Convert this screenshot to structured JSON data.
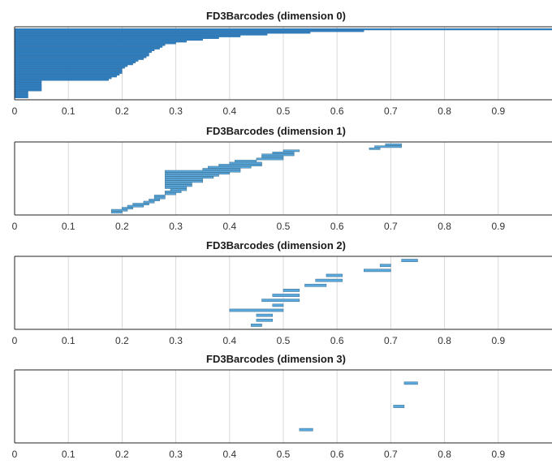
{
  "chart_data": [
    {
      "type": "barcode",
      "title": "FD3Barcodes (dimension 0)",
      "xlim": [
        0,
        1
      ],
      "xticks": [
        "0",
        "0.1",
        "0.2",
        "0.3",
        "0.4",
        "0.5",
        "0.6",
        "0.7",
        "0.8",
        "0.9"
      ],
      "grid": true,
      "bar_color": "#2f7fc1",
      "bars": [
        [
          0,
          1
        ],
        [
          0,
          0.65
        ],
        [
          0,
          0.55
        ],
        [
          0,
          0.47
        ],
        [
          0,
          0.42
        ],
        [
          0,
          0.38
        ],
        [
          0,
          0.35
        ],
        [
          0,
          0.32
        ],
        [
          0,
          0.3
        ],
        [
          0,
          0.28
        ],
        [
          0,
          0.275
        ],
        [
          0,
          0.27
        ],
        [
          0,
          0.26
        ],
        [
          0,
          0.255
        ],
        [
          0,
          0.25
        ],
        [
          0,
          0.25
        ],
        [
          0,
          0.245
        ],
        [
          0,
          0.24
        ],
        [
          0,
          0.23
        ],
        [
          0,
          0.225
        ],
        [
          0,
          0.22
        ],
        [
          0,
          0.21
        ],
        [
          0,
          0.205
        ],
        [
          0,
          0.2
        ],
        [
          0,
          0.2
        ],
        [
          0,
          0.2
        ],
        [
          0,
          0.195
        ],
        [
          0,
          0.19
        ],
        [
          0,
          0.18
        ],
        [
          0,
          0.175
        ],
        [
          0,
          0.05
        ],
        [
          0,
          0.05
        ],
        [
          0,
          0.05
        ],
        [
          0,
          0.05
        ],
        [
          0,
          0.05
        ],
        [
          0,
          0.05
        ],
        [
          0,
          0.025
        ],
        [
          0,
          0.025
        ],
        [
          0,
          0.025
        ],
        [
          0,
          0.025
        ]
      ]
    },
    {
      "type": "barcode",
      "title": "FD3Barcodes (dimension 1)",
      "xlim": [
        0,
        1
      ],
      "xticks": [
        "0",
        "0.1",
        "0.2",
        "0.3",
        "0.4",
        "0.5",
        "0.6",
        "0.7",
        "0.8",
        "0.9"
      ],
      "grid": true,
      "bar_color": "#5aa7dc",
      "bars": [
        [
          0.69,
          0.72
        ],
        [
          0.67,
          0.72
        ],
        [
          0.66,
          0.68
        ],
        [
          0.5,
          0.53
        ],
        [
          0.48,
          0.52
        ],
        [
          0.46,
          0.52
        ],
        [
          0.46,
          0.5
        ],
        [
          0.45,
          0.5
        ],
        [
          0.41,
          0.45
        ],
        [
          0.4,
          0.46
        ],
        [
          0.38,
          0.46
        ],
        [
          0.36,
          0.44
        ],
        [
          0.35,
          0.42
        ],
        [
          0.28,
          0.42
        ],
        [
          0.28,
          0.4
        ],
        [
          0.28,
          0.38
        ],
        [
          0.28,
          0.37
        ],
        [
          0.28,
          0.35
        ],
        [
          0.28,
          0.35
        ],
        [
          0.28,
          0.33
        ],
        [
          0.28,
          0.33
        ],
        [
          0.28,
          0.32
        ],
        [
          0.29,
          0.32
        ],
        [
          0.28,
          0.31
        ],
        [
          0.28,
          0.3
        ],
        [
          0.26,
          0.28
        ],
        [
          0.26,
          0.28
        ],
        [
          0.25,
          0.27
        ],
        [
          0.24,
          0.26
        ],
        [
          0.22,
          0.25
        ],
        [
          0.21,
          0.24
        ],
        [
          0.2,
          0.22
        ],
        [
          0.18,
          0.21
        ],
        [
          0.18,
          0.2
        ]
      ]
    },
    {
      "type": "barcode",
      "title": "FD3Barcodes (dimension 2)",
      "xlim": [
        0,
        1
      ],
      "xticks": [
        "0",
        "0.1",
        "0.2",
        "0.3",
        "0.4",
        "0.5",
        "0.6",
        "0.7",
        "0.8",
        "0.9"
      ],
      "grid": true,
      "bar_color": "#5aa7dc",
      "bars": [
        [
          0.72,
          0.75
        ],
        [
          0.68,
          0.7
        ],
        [
          0.65,
          0.7
        ],
        [
          0.58,
          0.61
        ],
        [
          0.56,
          0.61
        ],
        [
          0.54,
          0.58
        ],
        [
          0.5,
          0.53
        ],
        [
          0.48,
          0.53
        ],
        [
          0.46,
          0.53
        ],
        [
          0.48,
          0.5
        ],
        [
          0.4,
          0.5
        ],
        [
          0.45,
          0.48
        ],
        [
          0.45,
          0.48
        ],
        [
          0.44,
          0.46
        ]
      ]
    },
    {
      "type": "barcode",
      "title": "FD3Barcodes (dimension 3)",
      "xlim": [
        0,
        1
      ],
      "xticks": [
        "0",
        "0.1",
        "0.2",
        "0.3",
        "0.4",
        "0.5",
        "0.6",
        "0.7",
        "0.8",
        "0.9"
      ],
      "grid": true,
      "bar_color": "#5aa7dc",
      "bars": [
        [
          0.725,
          0.75
        ],
        [
          0.705,
          0.725
        ],
        [
          0.53,
          0.555
        ]
      ]
    }
  ]
}
